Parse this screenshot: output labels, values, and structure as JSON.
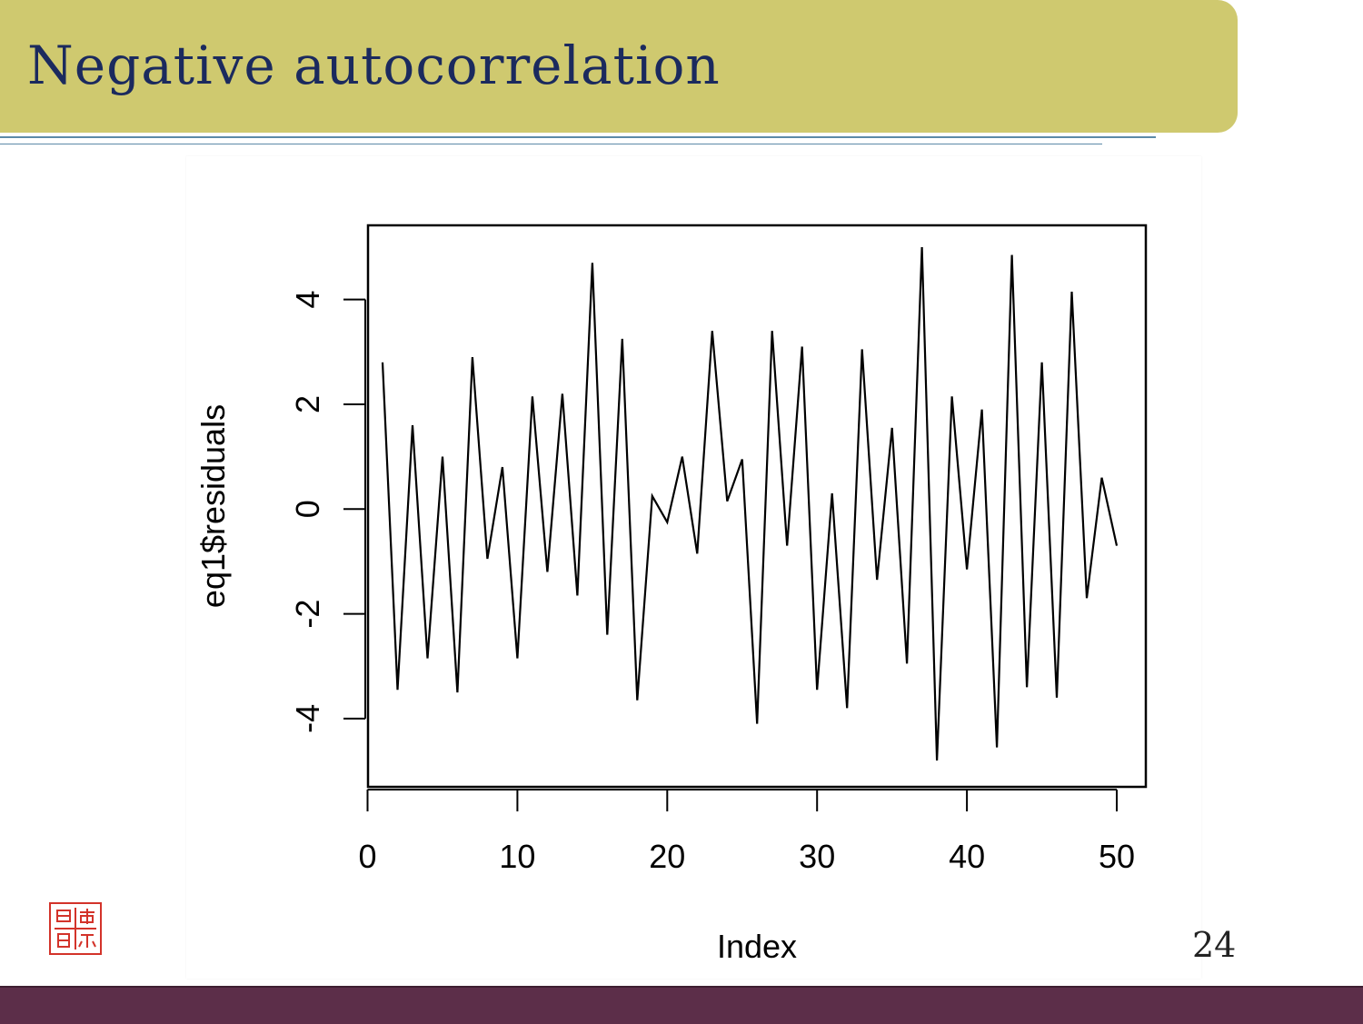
{
  "slide": {
    "title": "Negative autocorrelation",
    "page_number": "24"
  },
  "colors": {
    "title_bar": "#cfc96f",
    "title_text": "#1b2a5e",
    "rule": "#5d8aa8",
    "footer": "#5c2e49",
    "seal": "#d3332a"
  },
  "chart_data": {
    "type": "line",
    "xlabel": "Index",
    "ylabel": "eq1$residuals",
    "xlim": [
      1,
      50
    ],
    "ylim": [
      -4.8,
      5.0
    ],
    "x_ticks": [
      0,
      10,
      20,
      30,
      40,
      50
    ],
    "y_ticks": [
      -4,
      -2,
      0,
      2,
      4
    ],
    "grid": false,
    "x": [
      1,
      2,
      3,
      4,
      5,
      6,
      7,
      8,
      9,
      10,
      11,
      12,
      13,
      14,
      15,
      16,
      17,
      18,
      19,
      20,
      21,
      22,
      23,
      24,
      25,
      26,
      27,
      28,
      29,
      30,
      31,
      32,
      33,
      34,
      35,
      36,
      37,
      38,
      39,
      40,
      41,
      42,
      43,
      44,
      45,
      46,
      47,
      48,
      49,
      50
    ],
    "y": [
      2.8,
      -3.45,
      1.6,
      -2.85,
      1.0,
      -3.5,
      2.9,
      -0.95,
      0.8,
      -2.85,
      2.15,
      -1.2,
      2.2,
      -1.65,
      4.7,
      -2.4,
      3.25,
      -3.65,
      0.25,
      -0.25,
      1.0,
      -0.85,
      3.4,
      0.15,
      0.95,
      -4.1,
      3.4,
      -0.7,
      3.1,
      -3.45,
      0.3,
      -3.8,
      3.05,
      -1.35,
      1.55,
      -2.95,
      5.0,
      -4.8,
      2.15,
      -1.15,
      1.9,
      -4.55,
      4.85,
      -3.4,
      2.8,
      -3.6,
      4.15,
      -1.7,
      0.6,
      -0.7
    ]
  }
}
